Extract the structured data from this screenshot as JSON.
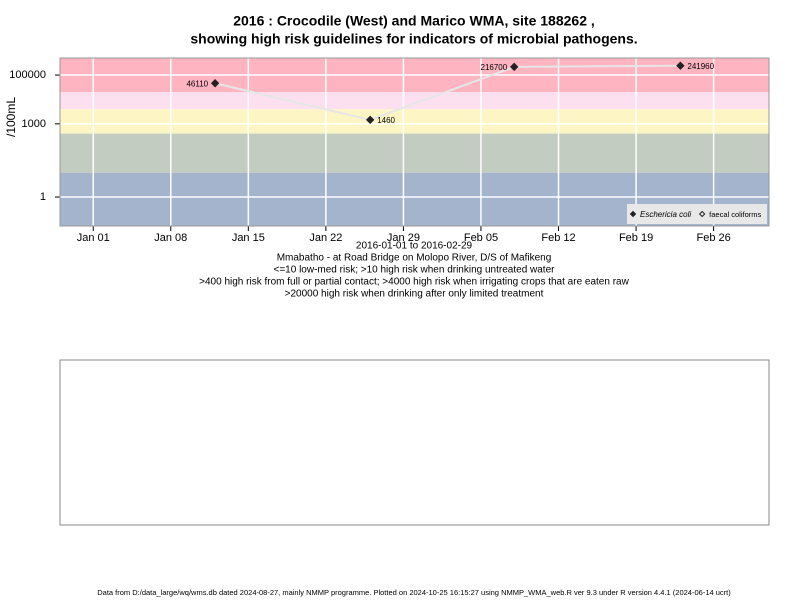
{
  "chart_data": {
    "type": "line",
    "title": "2016 : Crocodile (West) and Marico WMA, site 188262 ,",
    "title_line2": "showing high risk guidelines for indicators of microbial pathogens.",
    "y_label": "/100mL",
    "x_label_lines": [
      "2016-01-01 to 2016-02-29",
      "Mmabatho - at Road Bridge on Molopo River, D/S of Mafikeng",
      "<=10 low-med risk; >10 high risk when drinking untreated water",
      ">400 high risk from full or partial contact; >4000 high risk when irrigating crops that are eaten raw",
      ">20000 high risk when drinking after only limited treatment"
    ],
    "footer": "Data from D:/data_large/wq/wms.db dated 2024-08-27, mainly NMMP programme. Plotted on 2024-10-25 16:15:27 using NMMP_WMA_web.R ver 9.3 under R version 4.4.1 (2024-06-14 ucrt)",
    "x": [
      "2016-01-12",
      "2016-01-26",
      "2016-02-08",
      "2016-02-23"
    ],
    "series": [
      {
        "name": "Eschericia coli",
        "color": "#222222",
        "line_color": "#e6e6e6",
        "marker": "filled-diamond",
        "values": [
          46110,
          1460,
          216700,
          241960
        ]
      },
      {
        "name": "faecal coliforms",
        "color": "#222222",
        "line_color": "#e6e6e6",
        "marker": "open-diamond",
        "values": [
          null,
          null,
          null,
          null
        ]
      }
    ],
    "xlim": [
      "2015-12-29",
      "2016-03-02"
    ],
    "xticks": [
      {
        "value": "2016-01-01",
        "label": "Jan 01"
      },
      {
        "value": "2016-01-08",
        "label": "Jan 08"
      },
      {
        "value": "2016-01-15",
        "label": "Jan 15"
      },
      {
        "value": "2016-01-22",
        "label": "Jan 22"
      },
      {
        "value": "2016-01-29",
        "label": "Jan 29"
      },
      {
        "value": "2016-02-05",
        "label": "Feb 05"
      },
      {
        "value": "2016-02-12",
        "label": "Feb 12"
      },
      {
        "value": "2016-02-19",
        "label": "Feb 19"
      },
      {
        "value": "2016-02-26",
        "label": "Feb 26"
      }
    ],
    "ylim": [
      0.065,
      500000
    ],
    "yticks": [
      1,
      1000,
      100000
    ],
    "log_y": true,
    "grid": true,
    "band_breaks": [
      10,
      400,
      4000,
      20000
    ],
    "band_colors": [
      "#a4b4cc",
      "#c2ccc0",
      "#fdf6c4",
      "#fde0f0",
      "#ffb4c2"
    ],
    "legend": "bottom-right"
  }
}
